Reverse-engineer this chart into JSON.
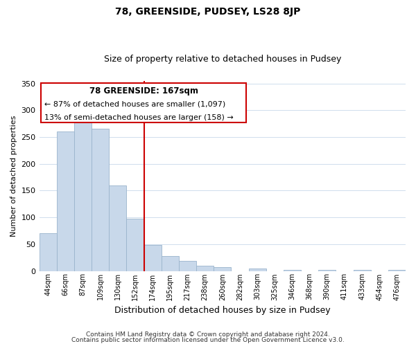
{
  "title": "78, GREENSIDE, PUDSEY, LS28 8JP",
  "subtitle": "Size of property relative to detached houses in Pudsey",
  "xlabel": "Distribution of detached houses by size in Pudsey",
  "ylabel": "Number of detached properties",
  "bar_labels": [
    "44sqm",
    "66sqm",
    "87sqm",
    "109sqm",
    "130sqm",
    "152sqm",
    "174sqm",
    "195sqm",
    "217sqm",
    "238sqm",
    "260sqm",
    "282sqm",
    "303sqm",
    "325sqm",
    "346sqm",
    "368sqm",
    "390sqm",
    "411sqm",
    "433sqm",
    "454sqm",
    "476sqm"
  ],
  "bar_values": [
    70,
    260,
    295,
    265,
    160,
    98,
    48,
    28,
    19,
    10,
    7,
    0,
    5,
    0,
    2,
    0,
    2,
    0,
    2,
    0,
    2
  ],
  "bar_color": "#c8d8ea",
  "bar_edge_color": "#9ab4cc",
  "vline_x": 6.0,
  "vline_color": "#cc0000",
  "ylim": [
    0,
    355
  ],
  "yticks": [
    0,
    50,
    100,
    150,
    200,
    250,
    300,
    350
  ],
  "annotation_title": "78 GREENSIDE: 167sqm",
  "annotation_line1": "← 87% of detached houses are smaller (1,097)",
  "annotation_line2": "13% of semi-detached houses are larger (158) →",
  "annotation_box_color": "#ffffff",
  "annotation_box_edge": "#cc0000",
  "bg_color": "#ffffff",
  "footnote1": "Contains HM Land Registry data © Crown copyright and database right 2024.",
  "footnote2": "Contains public sector information licensed under the Open Government Licence v3.0."
}
